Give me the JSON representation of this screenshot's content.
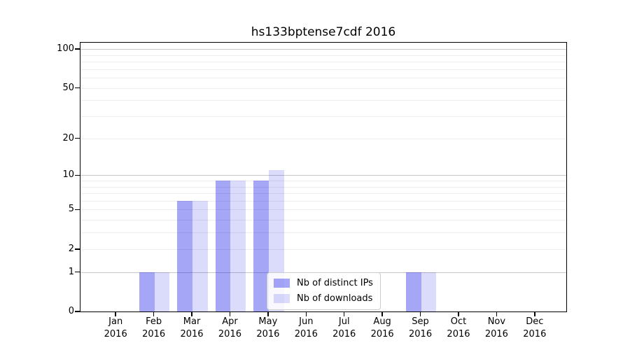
{
  "chart_data": {
    "type": "bar",
    "title": "hs133bptense7cdf 2016",
    "x": {
      "months": [
        "Jan",
        "Feb",
        "Mar",
        "Apr",
        "May",
        "Jun",
        "Jul",
        "Aug",
        "Sep",
        "Oct",
        "Nov",
        "Dec"
      ],
      "year": "2016",
      "categories": [
        "Jan 2016",
        "Feb 2016",
        "Mar 2016",
        "Apr 2016",
        "May 2016",
        "Jun 2016",
        "Jul 2016",
        "Aug 2016",
        "Sep 2016",
        "Oct 2016",
        "Nov 2016",
        "Dec 2016"
      ]
    },
    "series": [
      {
        "name": "Nb of distinct IPs",
        "color": "rgba(0,0,230,0.35)",
        "solid_hex": "#a8a8f6",
        "values": [
          0,
          1,
          6,
          9,
          9,
          0,
          0,
          0,
          1,
          0,
          0,
          0
        ]
      },
      {
        "name": "Nb of downloads",
        "color": "rgba(0,0,230,0.14)",
        "solid_hex": "#dcdcfa",
        "values": [
          0,
          1,
          6,
          9,
          11,
          0,
          0,
          0,
          1,
          0,
          0,
          0
        ]
      }
    ],
    "yaxis": {
      "scale": "log1p",
      "tick_labels": [
        "0",
        "1",
        "2",
        "5",
        "10",
        "20",
        "50",
        "100"
      ],
      "tick_values": [
        0,
        1,
        2,
        5,
        10,
        20,
        50,
        100
      ],
      "major_gridlines": [
        1,
        10,
        100
      ],
      "minor_gridlines": [
        2,
        3,
        4,
        5,
        6,
        7,
        8,
        9,
        20,
        30,
        40,
        50,
        60,
        70,
        80,
        90
      ],
      "ylim": [
        0,
        114
      ]
    },
    "grid": {
      "major_color": "#c8c8c8",
      "minor_color": "#ededed",
      "grid_on": true
    },
    "legend": {
      "position": "lower-center",
      "border_color": "#cccccc",
      "background": "rgba(255,255,255,0.8)"
    }
  }
}
